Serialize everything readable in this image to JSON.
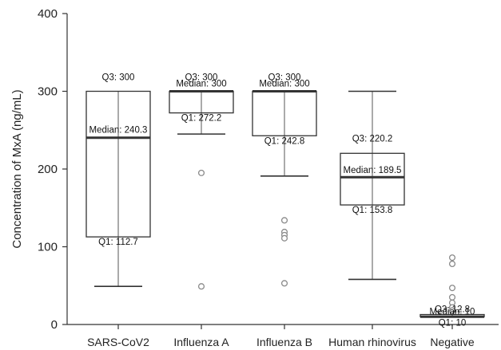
{
  "chart_data": {
    "type": "box",
    "title": "",
    "xlabel": "",
    "ylabel": "Concentration of MxA (ng/mL)",
    "ylim": [
      0,
      400
    ],
    "yticks": [
      0,
      100,
      200,
      300,
      400
    ],
    "grid": false,
    "colors": {
      "box_stroke": "#333333",
      "median": "#333333",
      "whisker": "#333333",
      "outlier": "#8a8a8a",
      "axis": "#333333"
    },
    "categories": [
      "SARS-CoV2",
      "Influenza A",
      "Influenza B",
      "Human rhinovirus",
      "Negative"
    ],
    "boxes": [
      {
        "category": "SARS-CoV2",
        "whisker_low": 49,
        "q1": 112.7,
        "median": 240.3,
        "q3": 300,
        "whisker_high": 300,
        "outliers": [],
        "labels": {
          "q1": "Q1: 112.7",
          "median": "Median: 240.3",
          "q3": "Q3: 300"
        }
      },
      {
        "category": "Influenza A",
        "whisker_low": 245,
        "q1": 272.2,
        "median": 300,
        "q3": 300,
        "whisker_high": 300,
        "outliers": [
          195,
          49
        ],
        "labels": {
          "q1": "Q1: 272.2",
          "median": "Median: 300",
          "q3": "Q3: 300"
        }
      },
      {
        "category": "Influenza B",
        "whisker_low": 191,
        "q1": 242.8,
        "median": 300,
        "q3": 300,
        "whisker_high": 300,
        "outliers": [
          134,
          119,
          115,
          111,
          53
        ],
        "labels": {
          "q1": "Q1: 242.8",
          "median": "Median: 300",
          "q3": "Q3: 300"
        }
      },
      {
        "category": "Human rhinovirus",
        "whisker_low": 58,
        "q1": 153.8,
        "median": 189.5,
        "q3": 220.2,
        "whisker_high": 300,
        "outliers": [],
        "labels": {
          "q1": "Q1: 153.8",
          "median": "Median: 189.5",
          "q3": "Q3: 220.2"
        }
      },
      {
        "category": "Negative",
        "whisker_low": 10,
        "q1": 10,
        "median": 10,
        "q3": 12.8,
        "whisker_high": 12.8,
        "outliers": [
          86,
          78,
          47,
          35,
          28,
          22,
          18
        ],
        "labels": {
          "q1": "Q1: 10",
          "median": "Median: 10",
          "q3": "Q3: 12.8"
        }
      }
    ]
  }
}
